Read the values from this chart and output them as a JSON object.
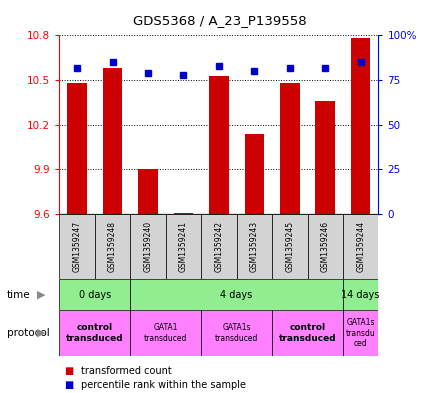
{
  "title": "GDS5368 / A_23_P139558",
  "samples": [
    "GSM1359247",
    "GSM1359248",
    "GSM1359240",
    "GSM1359241",
    "GSM1359242",
    "GSM1359243",
    "GSM1359245",
    "GSM1359246",
    "GSM1359244"
  ],
  "transformed_counts": [
    10.48,
    10.58,
    9.9,
    9.61,
    10.53,
    10.14,
    10.48,
    10.36,
    10.78
  ],
  "percentile_ranks": [
    82,
    85,
    79,
    78,
    83,
    80,
    82,
    82,
    85
  ],
  "y_min": 9.6,
  "y_max": 10.8,
  "y_ticks_left": [
    9.6,
    9.9,
    10.2,
    10.5,
    10.8
  ],
  "y_ticks_right": [
    0,
    25,
    50,
    75,
    100
  ],
  "time_groups": [
    {
      "label": "0 days",
      "start": 0,
      "end": 2,
      "color": "#90EE90"
    },
    {
      "label": "4 days",
      "start": 2,
      "end": 8,
      "color": "#90EE90"
    },
    {
      "label": "14 days",
      "start": 8,
      "end": 9,
      "color": "#90EE90"
    }
  ],
  "protocol_groups": [
    {
      "label": "control\ntransduced",
      "start": 0,
      "end": 2,
      "color": "#FF80FF",
      "bold": true
    },
    {
      "label": "GATA1\ntransduced",
      "start": 2,
      "end": 4,
      "color": "#FF80FF",
      "bold": false
    },
    {
      "label": "GATA1s\ntransduced",
      "start": 4,
      "end": 6,
      "color": "#FF80FF",
      "bold": false
    },
    {
      "label": "control\ntransduced",
      "start": 6,
      "end": 8,
      "color": "#FF80FF",
      "bold": true
    },
    {
      "label": "GATA1s\ntransdu\nced",
      "start": 8,
      "end": 9,
      "color": "#FF80FF",
      "bold": false
    }
  ],
  "bar_color": "#CC0000",
  "dot_color": "#0000CC",
  "sample_bg_color": "#D3D3D3",
  "bar_bottom": 9.6,
  "legend_items": [
    {
      "color": "#CC0000",
      "label": "transformed count"
    },
    {
      "color": "#0000CC",
      "label": "percentile rank within the sample"
    }
  ]
}
